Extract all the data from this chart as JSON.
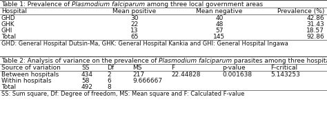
{
  "table1_title_normal1": "Table 1: Prevalence of ",
  "table1_title_italic": "Plasmodium falciparum",
  "table1_title_normal2": " among three local government areas",
  "table1_headers": [
    "Hospital",
    "Mean positive",
    "Mean negative",
    "Prevalence (%)"
  ],
  "table1_rows": [
    [
      "GHD",
      "30",
      "40",
      "42.86"
    ],
    [
      "GHK",
      "22",
      "48",
      "31.43"
    ],
    [
      "GHI",
      "13",
      "57",
      "18.57"
    ],
    [
      "Total",
      "65",
      "145",
      "92.86"
    ]
  ],
  "table1_footnote": "GHD: General Hospital Dutsin-Ma, GHK: General Hospital Kankia and GHI: General Hospital Ingawa",
  "table2_title_normal1": "Table 2: Analysis of variance on the prevalence of ",
  "table2_title_italic": "Plasmodium falciparum",
  "table2_title_normal2": " parasites among three hospitals",
  "table2_headers": [
    "Source of variation",
    "SS",
    "Df",
    "MS",
    "F",
    "p-value",
    "F-critical"
  ],
  "table2_rows": [
    [
      "Between hospitals",
      "434",
      "2",
      "217",
      "22.44828",
      "0.001638",
      "5.143253"
    ],
    [
      "Within hospitals",
      "58",
      "6",
      "9.666667",
      "",
      "",
      ""
    ],
    [
      "Total",
      "492",
      "8",
      "",
      "",
      "",
      ""
    ]
  ],
  "table2_footnote": "SS: Sum square, Df: Degree of freedom, MS: Mean square and F: Calculated F-value",
  "line_color": "#444444",
  "text_color": "#111111",
  "font_size": 6.5,
  "footnote_font_size": 6.0
}
